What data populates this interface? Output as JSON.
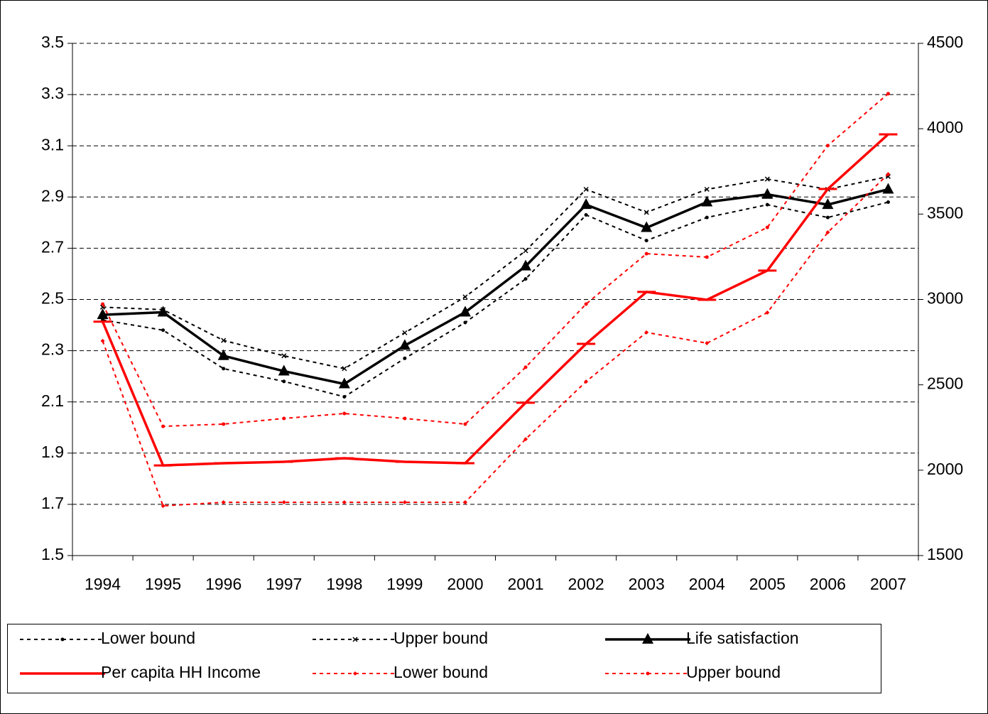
{
  "chart_data": {
    "type": "line",
    "categories": [
      "1994",
      "1995",
      "1996",
      "1997",
      "1998",
      "1999",
      "2000",
      "2001",
      "2002",
      "2003",
      "2004",
      "2005",
      "2006",
      "2007"
    ],
    "ylim": [
      1.5,
      3.5
    ],
    "yticks": [
      1.5,
      1.7,
      1.9,
      2.1,
      2.3,
      2.5,
      2.7,
      2.9,
      3.1,
      3.3,
      3.5
    ],
    "y2lim": [
      1500,
      4500
    ],
    "y2ticks": [
      1500,
      2000,
      2500,
      3000,
      3500,
      4000,
      4500
    ],
    "grid": true,
    "legend": "bottom",
    "series": [
      {
        "name": "Lower bound",
        "color": "#000000",
        "line_style": "dotted",
        "marker": "dot",
        "values": [
          2.42,
          2.38,
          2.23,
          2.18,
          2.12,
          2.27,
          2.41,
          2.58,
          2.83,
          2.73,
          2.82,
          2.87,
          2.82,
          2.88
        ]
      },
      {
        "name": "Upper bound",
        "color": "#000000",
        "line_style": "dotted",
        "marker": "x",
        "values": [
          2.47,
          2.46,
          2.34,
          2.28,
          2.23,
          2.37,
          2.51,
          2.69,
          2.93,
          2.84,
          2.93,
          2.97,
          2.93,
          2.98
        ]
      },
      {
        "name": "Life satisfaction",
        "color": "#000000",
        "line_style": "solid",
        "marker": "triangle",
        "values": [
          2.44,
          2.45,
          2.28,
          2.22,
          2.17,
          2.32,
          2.45,
          2.63,
          2.87,
          2.78,
          2.88,
          2.91,
          2.87,
          2.93
        ]
      },
      {
        "name": "Per capita HH Income",
        "color": "#ff0000",
        "line_style": "solid",
        "marker": "dash",
        "axis": "y2",
        "values": [
          2870,
          2028,
          2041,
          2049,
          2070,
          2049,
          2041,
          2395,
          2740,
          3044,
          2998,
          3169,
          3647,
          3967
        ]
      },
      {
        "name": "Lower bound",
        "color": "#ff0000",
        "line_style": "dotted",
        "marker": "diamond",
        "axis": "y2",
        "values": [
          2757,
          1791,
          1812,
          1812,
          1812,
          1812,
          1812,
          2182,
          2519,
          2807,
          2744,
          2923,
          3393,
          3734
        ]
      },
      {
        "name": "Upper bound",
        "color": "#ff0000",
        "line_style": "dotted",
        "marker": "dot",
        "axis": "y2",
        "values": [
          2973,
          2257,
          2270,
          2303,
          2332,
          2303,
          2270,
          2603,
          2973,
          3268,
          3248,
          3422,
          3901,
          4205
        ]
      }
    ]
  }
}
